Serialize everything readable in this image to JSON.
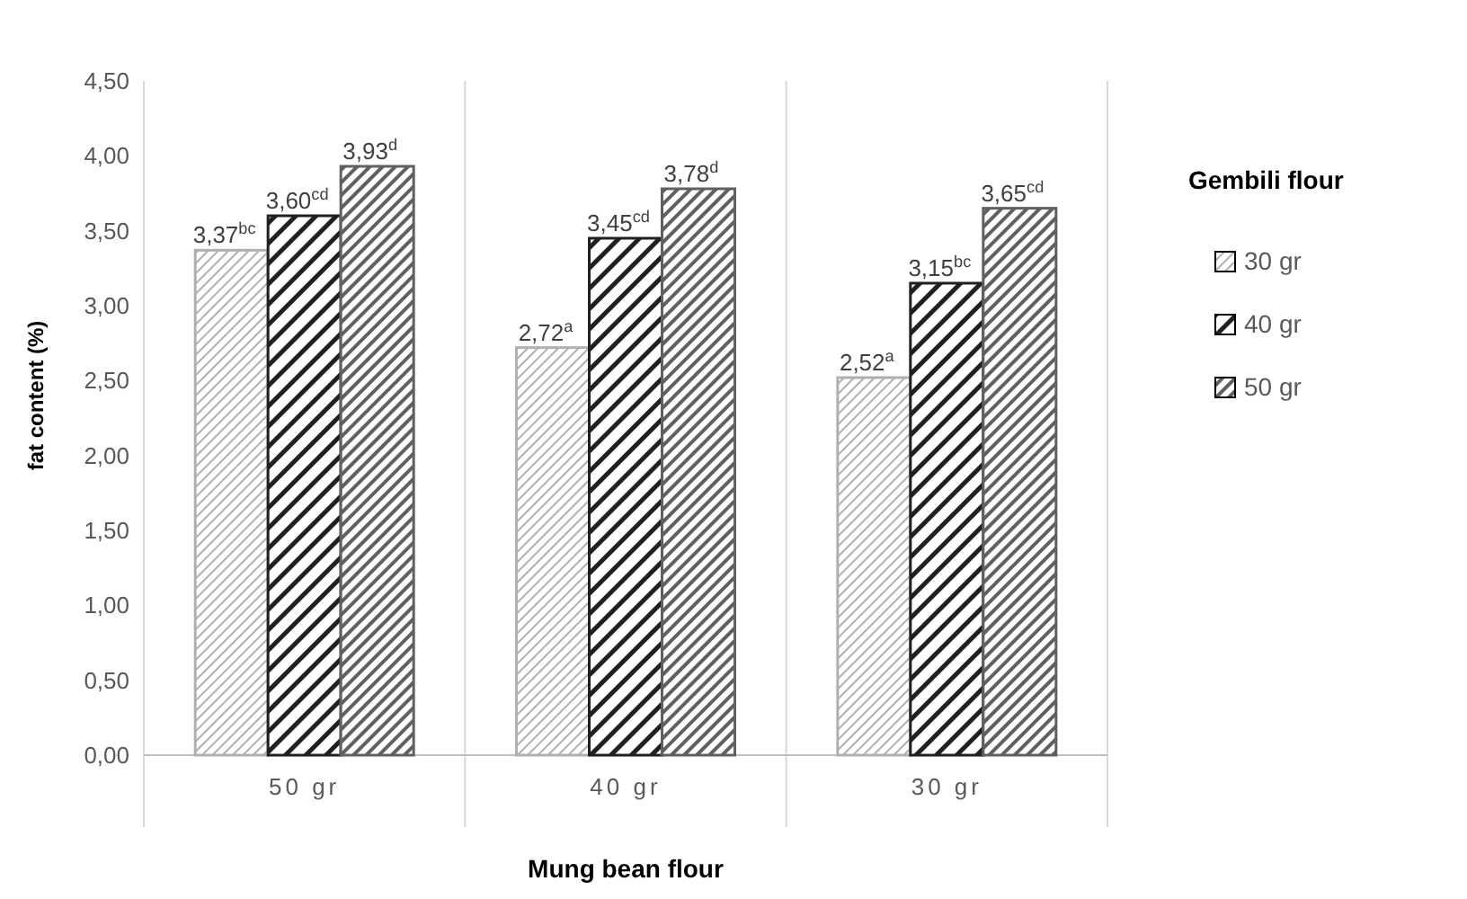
{
  "chart_data": {
    "type": "bar",
    "xlabel": "Mung bean flour",
    "ylabel": "fat content (%)",
    "legend_title": "Gembili flour",
    "legend": "right",
    "categories": [
      "50 gr",
      "40 gr",
      "30 gr"
    ],
    "ylim": [
      0,
      4.5
    ],
    "yticks": [
      {
        "value": 0,
        "label": "0,00"
      },
      {
        "value": 0.5,
        "label": "0,50"
      },
      {
        "value": 1,
        "label": "1,00"
      },
      {
        "value": 1.5,
        "label": "1,50"
      },
      {
        "value": 2,
        "label": "2,00"
      },
      {
        "value": 2.5,
        "label": "2,50"
      },
      {
        "value": 3,
        "label": "3,00"
      },
      {
        "value": 3.5,
        "label": "3,50"
      },
      {
        "value": 4,
        "label": "4,00"
      },
      {
        "value": 4.5,
        "label": "4,50"
      }
    ],
    "series": [
      {
        "name": "30 gr",
        "color": "#b0b0b0",
        "values": [
          3.37,
          2.72,
          2.52
        ],
        "value_labels": [
          "3,37$^{bc}$",
          "2,72$^{a}$",
          "2,52$^{a}$"
        ]
      },
      {
        "name": "40 gr",
        "color": "#202020",
        "values": [
          3.6,
          3.45,
          3.15
        ],
        "value_labels": [
          "3,60$^{cd}$",
          "3,45$^{cd}$",
          "3,15$^{bc}$"
        ]
      },
      {
        "name": "50 gr",
        "color": "#606060",
        "values": [
          3.93,
          3.78,
          3.65
        ],
        "value_labels": [
          "3,93$^{d}$",
          "3,78$^{d}$",
          "3,65$^{cd}$"
        ]
      }
    ]
  }
}
